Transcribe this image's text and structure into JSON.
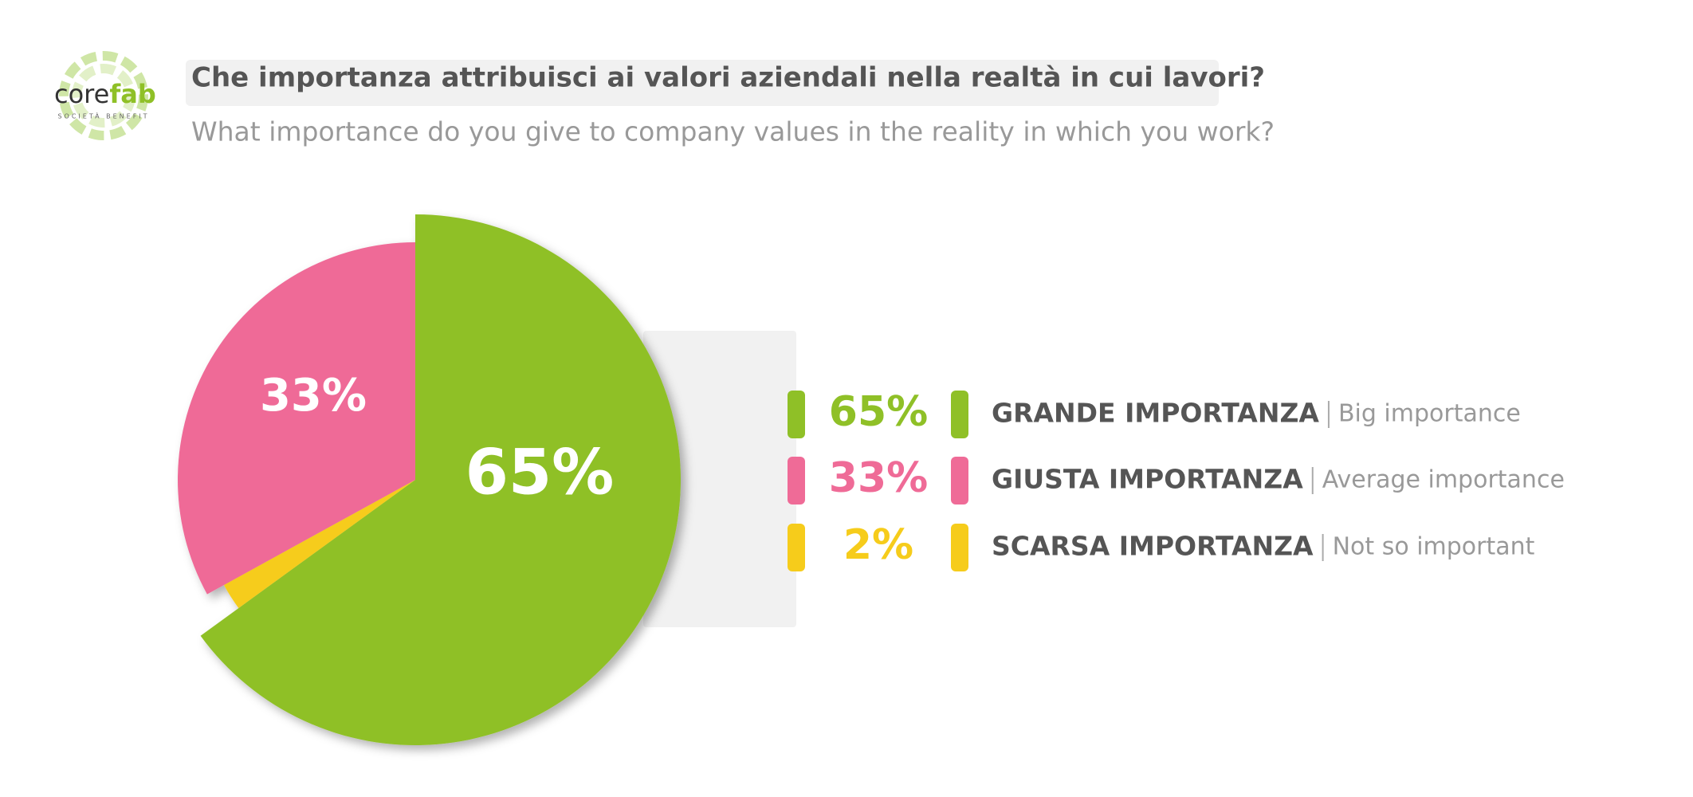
{
  "logo": {
    "text": [
      "core",
      "fab"
    ],
    "tagline": "SOCIETÀ BENEFIT"
  },
  "chart_data": {
    "type": "pie",
    "title": "Che importanza attribuisci ai valori aziendali nella realtà in cui lavori?",
    "subtitle": "What importance do you give to company values in the reality in which you work?",
    "categories": [
      "GRANDE IMPORTANZA",
      "GIUSTA IMPORTANZA",
      "SCARSA IMPORTANZA"
    ],
    "descriptions": [
      "Big importance",
      "Average importance",
      "Not so important"
    ],
    "values": [
      65,
      33,
      2
    ],
    "value_labels": [
      "65%",
      "33%",
      "2%"
    ],
    "colors": [
      "#8fc027",
      "#ef6b97",
      "#f6cc1b"
    ]
  }
}
